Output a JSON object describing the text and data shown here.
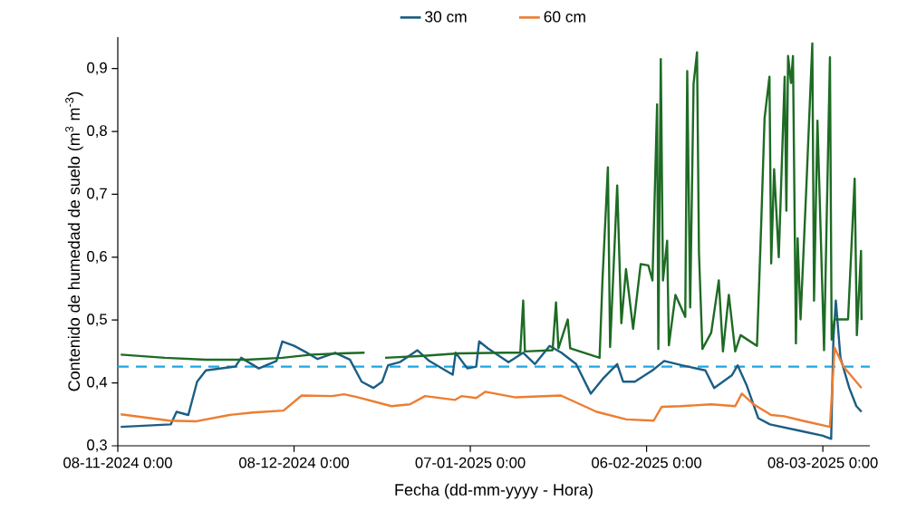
{
  "chart_data": {
    "type": "line",
    "xlabel": "Fecha (dd-mm-yyyy - Hora)",
    "ylabel": "Contenido de humedad de suelo (m$^{3}$ m$^{-3}$)",
    "xlim": [
      "2024-11-08",
      "2025-03-16"
    ],
    "xticks": [
      {
        "value": "2024-11-08",
        "label": "08-11-2024 0:00"
      },
      {
        "value": "2024-12-08",
        "label": "08-12-2024 0:00"
      },
      {
        "value": "2025-01-07",
        "label": "07-01-2025 0:00"
      },
      {
        "value": "2025-02-06",
        "label": "06-02-2025 0:00"
      },
      {
        "value": "2025-03-08",
        "label": "08-03-2025 0:00"
      }
    ],
    "ylim": [
      0.3,
      0.95
    ],
    "yticks": [
      {
        "value": 0.3,
        "label": "0,3"
      },
      {
        "value": 0.4,
        "label": "0,4"
      },
      {
        "value": 0.5,
        "label": "0,5"
      },
      {
        "value": 0.6,
        "label": "0,6"
      },
      {
        "value": 0.7,
        "label": "0,7"
      },
      {
        "value": 0.8,
        "label": "0,8"
      },
      {
        "value": 0.9,
        "label": "0,9"
      }
    ],
    "legend": "top",
    "grid": false,
    "marker": "none",
    "line_style": "solid",
    "ref_lines": [
      {
        "axis": "y",
        "value": 0.426,
        "color": "#1ea5e0",
        "line_style": "dashed"
      }
    ],
    "series": [
      {
        "name": "30 cm",
        "color": "#1b5e84",
        "x": [
          "2024-11-08T12:00",
          "2024-11-17",
          "2024-11-18",
          "2024-11-20",
          "2024-11-21T12:00",
          "2024-11-23",
          "2024-11-28",
          "2024-11-29",
          "2024-12-02",
          "2024-12-05",
          "2024-12-06",
          "2024-12-08",
          "2024-12-10",
          "2024-12-12",
          "2024-12-15",
          "2024-12-17T12:00",
          "2024-12-19T12:00",
          "2024-12-21T12:00",
          "2024-12-23",
          "2024-12-24",
          "2024-12-26",
          "2024-12-29",
          "2024-12-31",
          "2025-01-04",
          "2025-01-04T12:00",
          "2025-01-06T12:00",
          "2025-01-08",
          "2025-01-08T12:00",
          "2025-01-10",
          "2025-01-13T12:00",
          "2025-01-16",
          "2025-01-18",
          "2025-01-20T12:00",
          "2025-01-22T12:00",
          "2025-01-25",
          "2025-01-27T12:00",
          "2025-01-29T12:00",
          "2025-02-01",
          "2025-02-02",
          "2025-02-04",
          "2025-02-07",
          "2025-02-09",
          "2025-02-12",
          "2025-02-16",
          "2025-02-17T12:00",
          "2025-02-20T12:00",
          "2025-02-21T12:00",
          "2025-02-23",
          "2025-02-25",
          "2025-02-27",
          "2025-03-04T12:00",
          "2025-03-08",
          "2025-03-09T10:00",
          "2025-03-09T19:00",
          "2025-03-10T05:00",
          "2025-03-11",
          "2025-03-12T12:00",
          "2025-03-13T17:00",
          "2025-03-14T14:00"
        ],
        "values": [
          0.33,
          0.334,
          0.354,
          0.349,
          0.402,
          0.42,
          0.426,
          0.44,
          0.423,
          0.435,
          0.466,
          0.459,
          0.449,
          0.438,
          0.448,
          0.437,
          0.402,
          0.392,
          0.402,
          0.428,
          0.433,
          0.452,
          0.435,
          0.413,
          0.448,
          0.423,
          0.426,
          0.466,
          0.455,
          0.433,
          0.448,
          0.43,
          0.459,
          0.448,
          0.43,
          0.383,
          0.406,
          0.43,
          0.402,
          0.402,
          0.42,
          0.435,
          0.428,
          0.42,
          0.392,
          0.412,
          0.428,
          0.397,
          0.344,
          0.334,
          0.323,
          0.316,
          0.311,
          0.469,
          0.531,
          0.44,
          0.392,
          0.363,
          0.354
        ]
      },
      {
        "name": "60 cm",
        "color": "#ed7d31",
        "x": [
          "2024-11-08T12:00",
          "2024-11-16T19:00",
          "2024-11-21T10:00",
          "2024-11-27",
          "2024-12-01",
          "2024-12-06T05:00",
          "2024-12-09T07:00",
          "2024-12-14T12:00",
          "2024-12-16T12:00",
          "2024-12-18T12:00",
          "2024-12-24T14:00",
          "2024-12-27T17:00",
          "2024-12-30T07:00",
          "2025-01-04T10:00",
          "2025-01-05T12:00",
          "2025-01-08",
          "2025-01-09T14:00",
          "2025-01-14T17:00",
          "2025-01-22T10:00",
          "2025-01-28T12:00",
          "2025-02-02T14:00",
          "2025-02-07T05:00",
          "2025-02-08T14:00",
          "2025-02-11T19:00",
          "2025-02-17",
          "2025-02-21T02:00",
          "2025-02-22T05:00",
          "2025-02-24T05:00",
          "2025-02-27T05:00",
          "2025-03-01T10:00",
          "2025-03-04T12:00",
          "2025-03-09T05:00",
          "2025-03-10",
          "2025-03-11T12:00",
          "2025-03-14T14:00"
        ],
        "values": [
          0.35,
          0.34,
          0.339,
          0.349,
          0.353,
          0.356,
          0.38,
          0.379,
          0.382,
          0.378,
          0.363,
          0.366,
          0.379,
          0.373,
          0.379,
          0.376,
          0.386,
          0.377,
          0.38,
          0.354,
          0.342,
          0.34,
          0.362,
          0.363,
          0.366,
          0.363,
          0.383,
          0.366,
          0.349,
          0.347,
          0.34,
          0.33,
          0.456,
          0.426,
          0.392
        ]
      },
      {
        "color": "#1e6b24",
        "x": [
          "2024-11-08T12:00",
          "2024-11-16",
          "2024-11-23",
          "2024-11-30",
          "2024-12-06",
          "2024-12-11",
          "2024-12-16",
          "2024-12-20",
          "2024-12-22",
          "2024-12-23T12:00",
          "2024-12-30",
          "2025-01-05",
          "2025-01-13",
          "2025-01-15T12:00",
          "2025-01-16",
          "2025-01-16T07:00",
          "2025-01-21",
          "2025-01-21T14:00",
          "2025-01-22",
          "2025-01-23T14:00",
          "2025-01-24",
          "2025-01-29",
          "2025-01-29T12:00",
          "2025-01-30T10:00",
          "2025-01-30T19:00",
          "2025-02-01",
          "2025-02-01T17:00",
          "2025-02-02T12:00",
          "2025-02-03T17:00",
          "2025-02-05",
          "2025-02-06T07:00",
          "2025-02-07",
          "2025-02-07T19:00",
          "2025-02-08",
          "2025-02-08T10:00",
          "2025-02-08T19:00",
          "2025-02-09T12:00",
          "2025-02-09T19:00",
          "2025-02-10T22:00",
          "2025-02-12T14:00",
          "2025-02-12T22:00",
          "2025-02-13T10:00",
          "2025-02-14",
          "2025-02-14T14:00",
          "2025-02-14T22:00",
          "2025-02-15T12:00",
          "2025-02-17",
          "2025-02-18T07:00",
          "2025-02-19",
          "2025-02-20",
          "2025-02-21T02:00",
          "2025-02-22",
          "2025-02-24T19:00",
          "2025-02-25T12:00",
          "2025-02-26T02:00",
          "2025-02-26T22:00",
          "2025-02-27T05:00",
          "2025-02-27T17:00",
          "2025-02-28T12:00",
          "2025-03-01T12:00",
          "2025-03-01T19:00",
          "2025-03-02T02:00",
          "2025-03-02T14:00",
          "2025-03-02T22:00",
          "2025-03-03T10:00",
          "2025-03-03T17:00",
          "2025-03-04T05:00",
          "2025-03-05T05:00",
          "2025-03-06T05:00",
          "2025-03-06T12:00",
          "2025-03-07T02:00",
          "2025-03-08T05:00",
          "2025-03-09T05:00",
          "2025-03-09T12:00",
          "2025-03-10",
          "2025-03-12T07:00",
          "2025-03-13T10:00",
          "2025-03-13T19:00",
          "2025-03-14T12:00",
          "2025-03-14T14:00"
        ],
        "values": [
          0.445,
          0.44,
          0.437,
          0.437,
          0.44,
          0.445,
          0.447,
          0.448,
          null,
          0.44,
          0.443,
          0.447,
          0.448,
          0.448,
          0.531,
          0.45,
          0.452,
          0.528,
          0.455,
          0.501,
          0.455,
          0.44,
          0.565,
          0.743,
          0.457,
          0.714,
          0.495,
          0.581,
          0.486,
          0.589,
          0.587,
          0.563,
          0.843,
          0.454,
          0.915,
          0.563,
          0.626,
          0.46,
          0.54,
          0.505,
          0.896,
          0.52,
          0.876,
          0.926,
          0.607,
          0.454,
          0.48,
          0.563,
          0.45,
          0.54,
          0.45,
          0.476,
          0.459,
          0.65,
          0.821,
          0.887,
          0.59,
          0.74,
          0.6,
          0.887,
          0.674,
          0.92,
          0.877,
          0.92,
          0.463,
          0.63,
          0.501,
          0.715,
          0.94,
          0.531,
          0.817,
          0.452,
          0.918,
          0.469,
          0.501,
          0.501,
          0.725,
          0.476,
          0.61,
          0.5
        ]
      }
    ]
  }
}
